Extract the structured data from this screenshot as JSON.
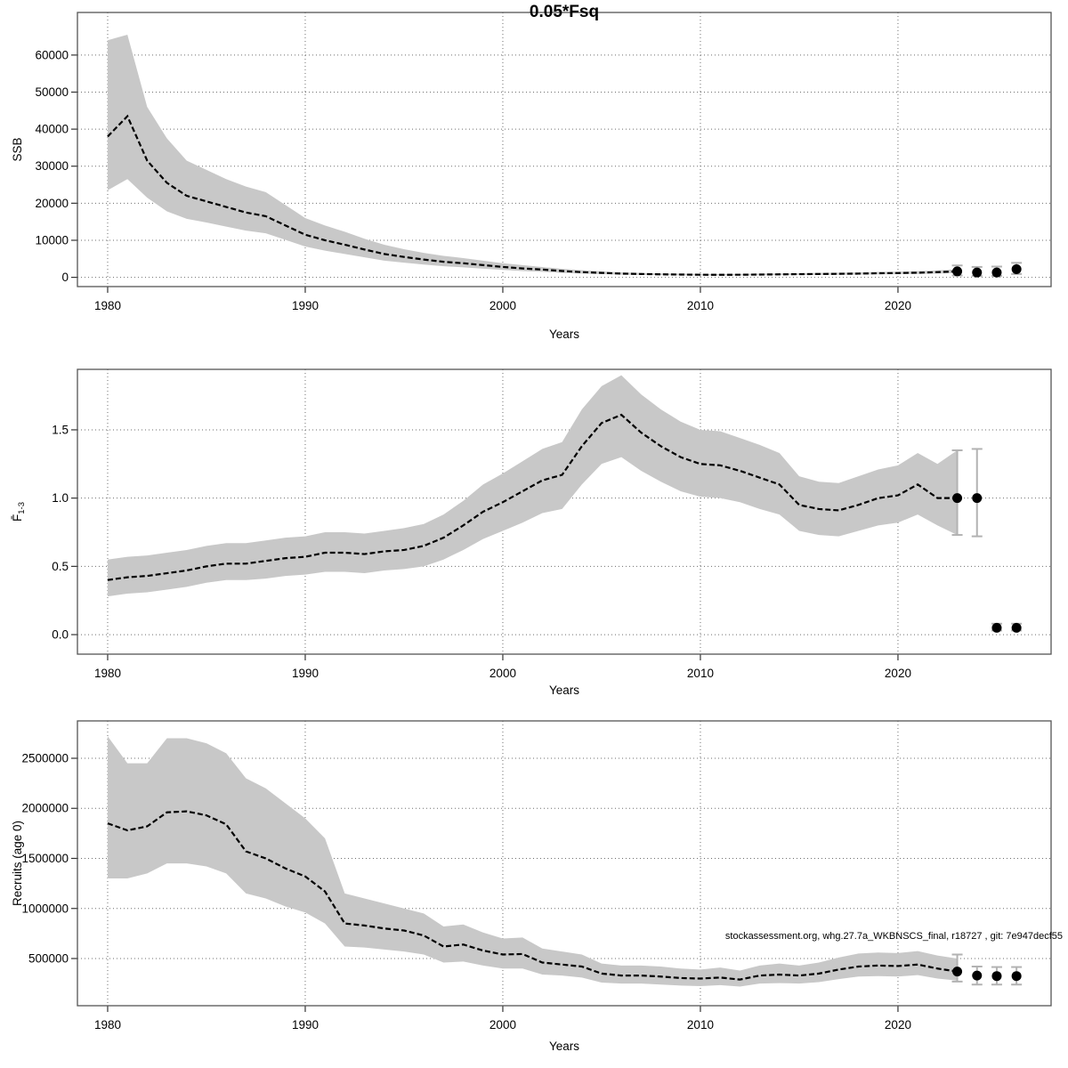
{
  "title": "0.05*Fsq",
  "annotation": "stockassessment.org, whg.27.7a_WKBNSCS_final, r18727 , git: 7e947decf55",
  "colors": {
    "band": "#c8c8c8",
    "line": "#000000",
    "grid": "#6e6e6e",
    "border": "#555555",
    "error_bar": "#b2b2b2",
    "point": "#000000",
    "text": "#000000"
  },
  "x_axis": {
    "label": "Years",
    "ticks": [
      1980,
      1990,
      2000,
      2010,
      2020
    ],
    "range": [
      1978.47,
      2027.75
    ]
  },
  "chart_data": [
    {
      "type": "line",
      "name": "ssb",
      "title": "SSB with 95% confidence band and forecast",
      "ylabel": "SSB",
      "x_start": 1980,
      "values": [
        38000,
        43500,
        31500,
        25500,
        22000,
        20500,
        19000,
        17500,
        16500,
        14000,
        11500,
        10000,
        8800,
        7500,
        6300,
        5500,
        4800,
        4200,
        3800,
        3300,
        2800,
        2400,
        2100,
        1700,
        1400,
        1200,
        1000,
        900,
        800,
        750,
        700,
        680,
        700,
        750,
        800,
        850,
        900,
        950,
        1000,
        1100,
        1150,
        1250,
        1400,
        1600
      ],
      "hi": [
        64000,
        65500,
        46000,
        37500,
        31500,
        29000,
        26500,
        24500,
        23000,
        19500,
        16000,
        14000,
        12300,
        10400,
        8800,
        7600,
        6600,
        5800,
        5200,
        4500,
        3800,
        3300,
        2800,
        2300,
        1900,
        1600,
        1350,
        1200,
        1050,
        1000,
        930,
        900,
        930,
        1000,
        1050,
        1120,
        1200,
        1260,
        1330,
        1460,
        1530,
        1660,
        1860,
        2200
      ],
      "lo": [
        23500,
        26500,
        21500,
        17800,
        15800,
        14800,
        13700,
        12600,
        11900,
        10100,
        8300,
        7200,
        6300,
        5400,
        4500,
        3950,
        3450,
        3000,
        2700,
        2350,
        2000,
        1700,
        1500,
        1200,
        1000,
        850,
        720,
        650,
        580,
        540,
        500,
        490,
        500,
        540,
        580,
        610,
        650,
        680,
        720,
        790,
        830,
        900,
        1010,
        1150
      ],
      "yticks": [
        0,
        10000,
        20000,
        30000,
        40000,
        50000,
        60000
      ],
      "ytick_labels": [
        "0",
        "10000",
        "20000",
        "30000",
        "40000",
        "50000",
        "60000"
      ],
      "ylim": [
        -2500,
        71500
      ],
      "forecast": [
        {
          "x": 2023,
          "y": 1600,
          "lo": 500,
          "hi": 3200
        },
        {
          "x": 2024,
          "y": 1300,
          "lo": 400,
          "hi": 2800
        },
        {
          "x": 2025,
          "y": 1300,
          "lo": 400,
          "hi": 2900
        },
        {
          "x": 2026,
          "y": 2200,
          "lo": 900,
          "hi": 3900
        }
      ]
    },
    {
      "type": "line",
      "name": "fbar",
      "title": "Mean fishing mortality ages 1-3 with 95% confidence band and forecast",
      "ylabel": "F̄",
      "ylabel_sub": "1-3",
      "x_start": 1980,
      "values": [
        0.4,
        0.42,
        0.43,
        0.45,
        0.47,
        0.5,
        0.52,
        0.52,
        0.54,
        0.56,
        0.57,
        0.6,
        0.6,
        0.59,
        0.61,
        0.62,
        0.65,
        0.71,
        0.8,
        0.9,
        0.97,
        1.05,
        1.13,
        1.17,
        1.38,
        1.55,
        1.61,
        1.48,
        1.38,
        1.3,
        1.25,
        1.24,
        1.2,
        1.15,
        1.1,
        0.95,
        0.92,
        0.91,
        0.95,
        1.0,
        1.02,
        1.1,
        1.0,
        1.0
      ],
      "hi": [
        0.55,
        0.57,
        0.58,
        0.6,
        0.62,
        0.65,
        0.67,
        0.67,
        0.69,
        0.71,
        0.72,
        0.75,
        0.75,
        0.74,
        0.76,
        0.78,
        0.81,
        0.88,
        0.98,
        1.1,
        1.18,
        1.27,
        1.36,
        1.41,
        1.65,
        1.82,
        1.9,
        1.76,
        1.65,
        1.56,
        1.5,
        1.49,
        1.44,
        1.39,
        1.33,
        1.16,
        1.12,
        1.11,
        1.16,
        1.21,
        1.24,
        1.33,
        1.25,
        1.35
      ],
      "lo": [
        0.28,
        0.3,
        0.31,
        0.33,
        0.35,
        0.38,
        0.4,
        0.4,
        0.41,
        0.43,
        0.44,
        0.46,
        0.46,
        0.45,
        0.47,
        0.48,
        0.5,
        0.55,
        0.62,
        0.7,
        0.76,
        0.82,
        0.89,
        0.92,
        1.1,
        1.25,
        1.3,
        1.2,
        1.12,
        1.05,
        1.01,
        1.0,
        0.97,
        0.92,
        0.88,
        0.76,
        0.73,
        0.72,
        0.76,
        0.8,
        0.82,
        0.88,
        0.8,
        0.73
      ],
      "yticks": [
        0,
        0.5,
        1.0,
        1.5
      ],
      "ytick_labels": [
        "0.0",
        "0.5",
        "1.0",
        "1.5"
      ],
      "ylim": [
        -0.143,
        1.943
      ],
      "forecast": [
        {
          "x": 2023,
          "y": 1.0,
          "lo": 0.73,
          "hi": 1.35
        },
        {
          "x": 2024,
          "y": 1.0,
          "lo": 0.72,
          "hi": 1.36
        },
        {
          "x": 2025,
          "y": 0.05,
          "lo": 0.03,
          "hi": 0.08
        },
        {
          "x": 2026,
          "y": 0.05,
          "lo": 0.03,
          "hi": 0.08
        }
      ]
    },
    {
      "type": "line",
      "name": "recruits",
      "title": "Recruitment (age 0) with 95% confidence band and forecast",
      "ylabel": "Recruits (age 0)",
      "x_start": 1980,
      "values": [
        1850000,
        1780000,
        1820000,
        1960000,
        1970000,
        1930000,
        1840000,
        1570000,
        1500000,
        1400000,
        1320000,
        1170000,
        850000,
        830000,
        800000,
        780000,
        730000,
        620000,
        640000,
        580000,
        540000,
        545000,
        460000,
        440000,
        420000,
        350000,
        330000,
        330000,
        320000,
        305000,
        300000,
        310000,
        290000,
        330000,
        340000,
        330000,
        350000,
        390000,
        420000,
        430000,
        425000,
        440000,
        400000,
        370000
      ],
      "hi": [
        2720000,
        2450000,
        2450000,
        2700000,
        2700000,
        2650000,
        2550000,
        2300000,
        2200000,
        2050000,
        1900000,
        1700000,
        1150000,
        1100000,
        1050000,
        1000000,
        950000,
        820000,
        840000,
        760000,
        700000,
        710000,
        600000,
        570000,
        540000,
        450000,
        430000,
        430000,
        420000,
        400000,
        390000,
        410000,
        380000,
        430000,
        450000,
        430000,
        460000,
        510000,
        550000,
        560000,
        555000,
        575000,
        530000,
        500000
      ],
      "lo": [
        1300000,
        1300000,
        1350000,
        1450000,
        1450000,
        1420000,
        1350000,
        1150000,
        1100000,
        1020000,
        960000,
        850000,
        620000,
        610000,
        590000,
        570000,
        540000,
        460000,
        470000,
        430000,
        400000,
        400000,
        340000,
        330000,
        310000,
        260000,
        250000,
        250000,
        240000,
        230000,
        225000,
        235000,
        220000,
        250000,
        255000,
        250000,
        265000,
        295000,
        320000,
        325000,
        320000,
        335000,
        300000,
        280000
      ],
      "yticks": [
        500000,
        1000000,
        1500000,
        2000000,
        2500000
      ],
      "ytick_labels": [
        "500000",
        "1000000",
        "1500000",
        "2000000",
        "2500000"
      ],
      "ylim": [
        28889,
        2873333
      ],
      "forecast": [
        {
          "x": 2023,
          "y": 370000,
          "lo": 270000,
          "hi": 540000
        },
        {
          "x": 2024,
          "y": 330000,
          "lo": 240000,
          "hi": 420000
        },
        {
          "x": 2025,
          "y": 325000,
          "lo": 240000,
          "hi": 415000
        },
        {
          "x": 2026,
          "y": 325000,
          "lo": 240000,
          "hi": 415000
        }
      ]
    }
  ]
}
